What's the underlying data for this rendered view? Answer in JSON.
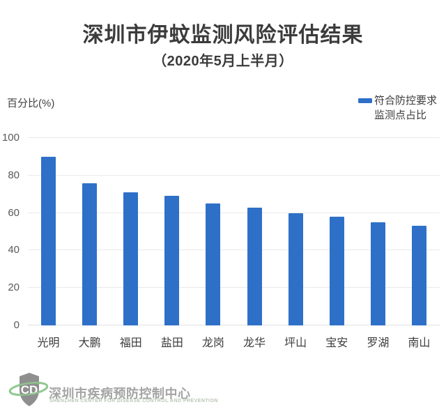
{
  "header": {
    "title": "深圳市伊蚊监测风险评估结果",
    "subtitle": "（2020年5月上半月）"
  },
  "legend": {
    "line1": "符合防控要求",
    "line2": "监测点占比",
    "swatch_color": "#2e70c8"
  },
  "chart_data": {
    "type": "bar",
    "title": "深圳市伊蚊监测风险评估结果（2020年5月上半月）",
    "series_name": "符合防控要求监测点占比",
    "categories": [
      "光明",
      "大鹏",
      "福田",
      "盐田",
      "龙岗",
      "龙华",
      "坪山",
      "宝安",
      "罗湖",
      "南山"
    ],
    "values": [
      90,
      76,
      71,
      69,
      65,
      63,
      60,
      58,
      55,
      53
    ],
    "xlabel": "",
    "ylabel": "百分比(%)",
    "ylim": [
      0,
      100
    ],
    "yticks": [
      0,
      20,
      40,
      60,
      80,
      100
    ],
    "grid": true,
    "legend_position": "top-right",
    "bar_color": "#2e70c8"
  },
  "footer": {
    "org_cn": "深圳市疾病预防控制中心",
    "org_en": "SHENZHEN CENTER FOR DISEASE CONTROL AND PREVENTION",
    "logo": "shenzhen-cdc-shield-logo",
    "logo_shield_color": "#8f8f8f",
    "logo_ring_color": "#8fc98f"
  },
  "colors": {
    "bar": "#2e70c8",
    "title_text": "#3b3b3b",
    "axis_text": "#595959",
    "category_text": "#3d3d3d",
    "gridline": "#e9e9e9",
    "background": "#ffffff"
  }
}
